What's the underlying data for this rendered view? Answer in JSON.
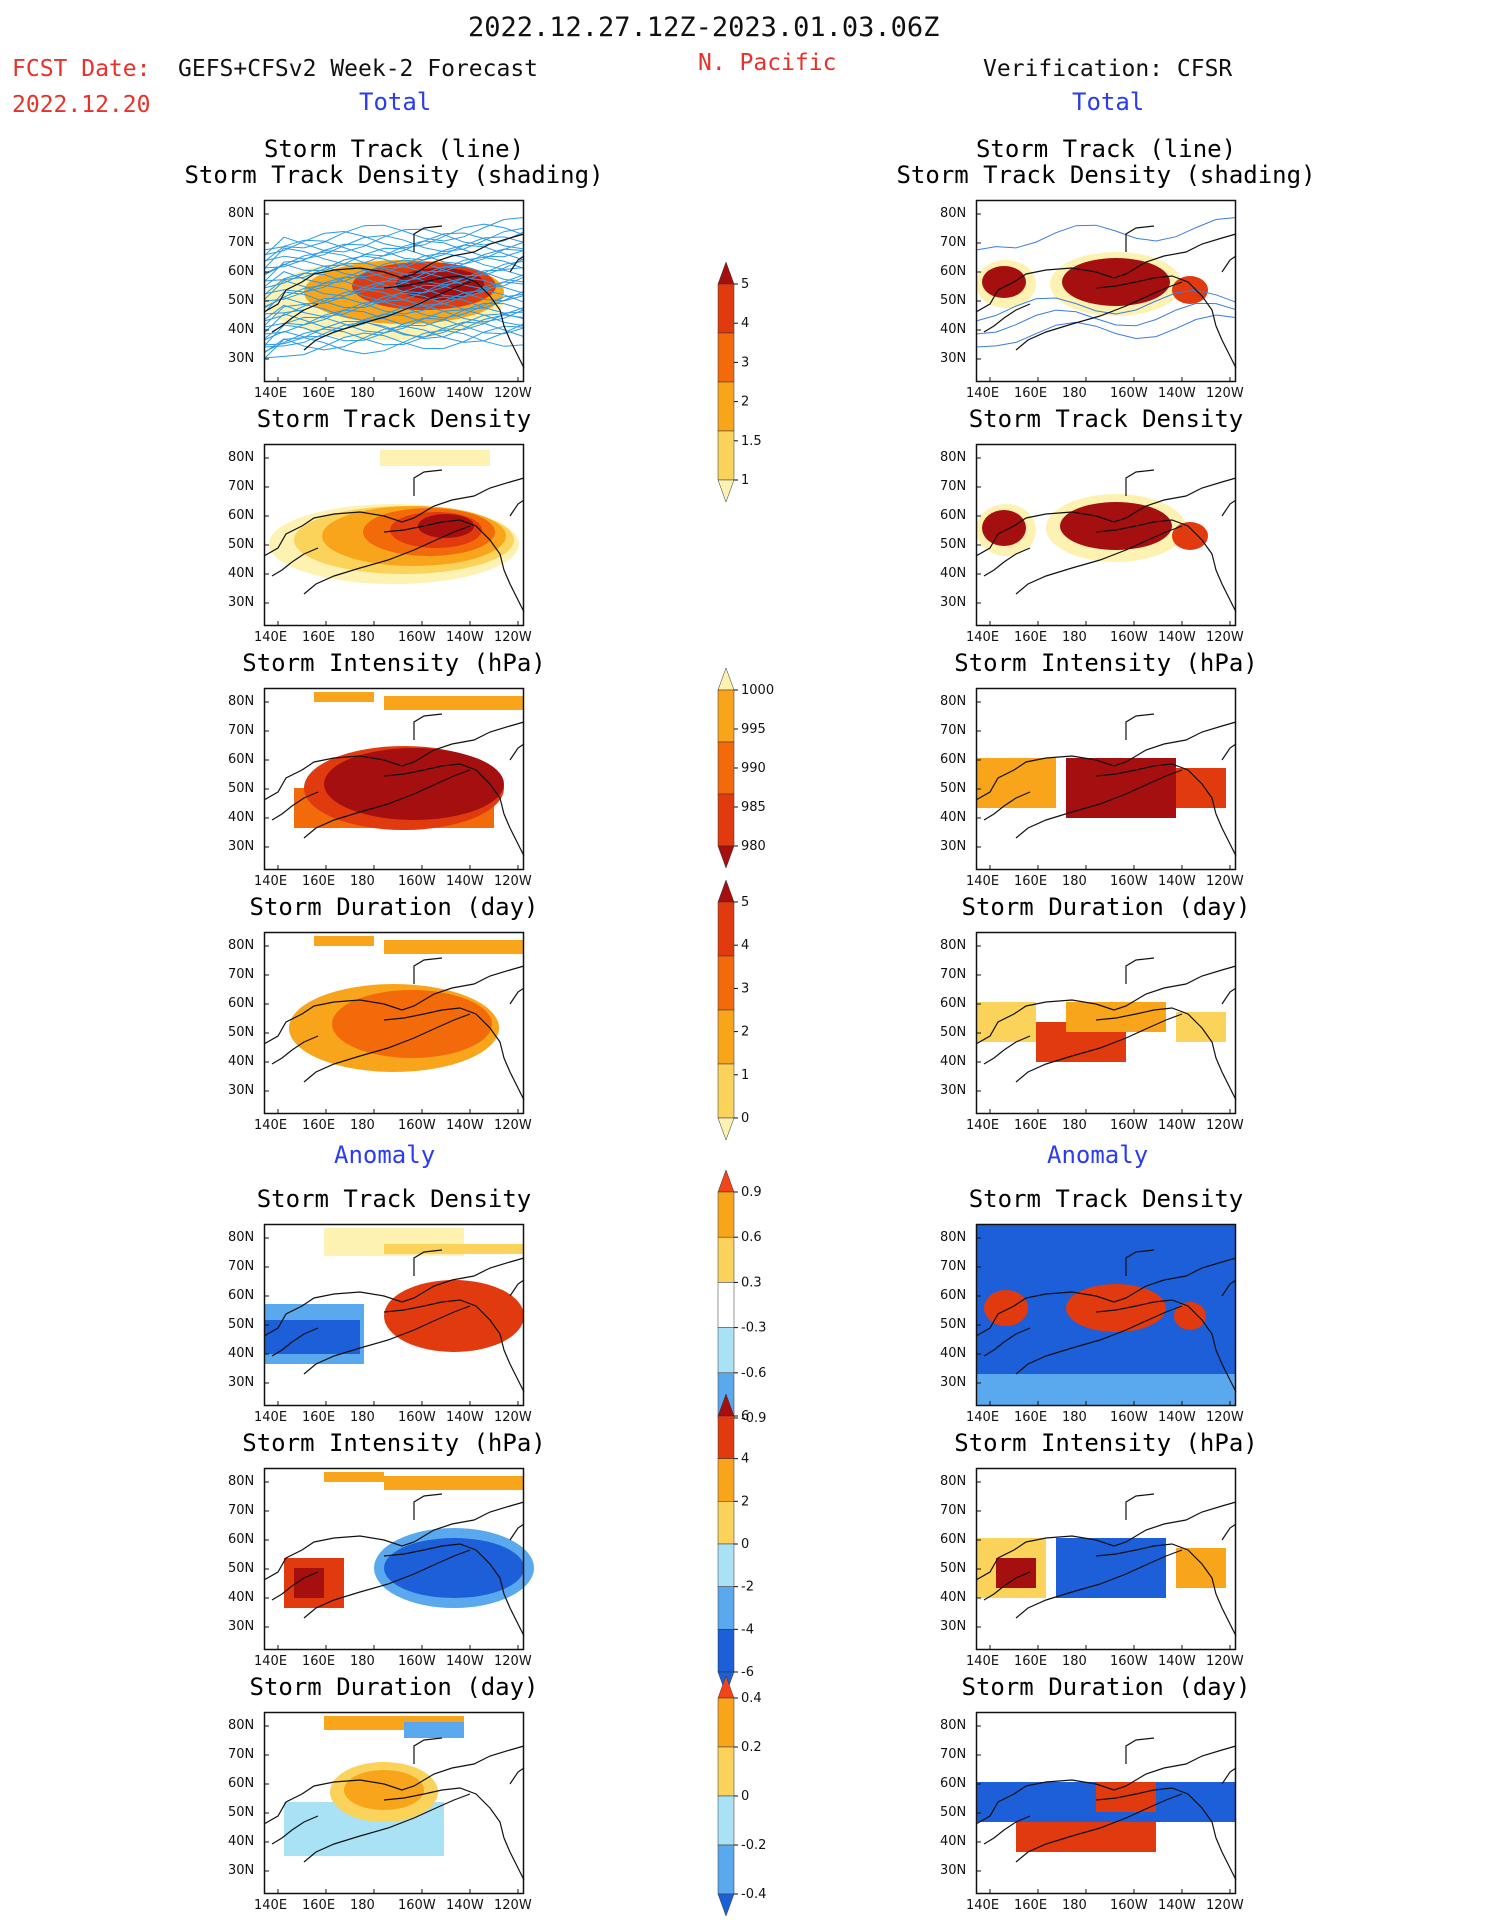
{
  "header": {
    "date_range": "2022.12.27.12Z-2023.01.03.06Z",
    "fcst_label": "FCST Date:",
    "fcst_date": "2022.12.20",
    "model": "GEFS+CFSv2 Week-2 Forecast",
    "region": "N. Pacific",
    "verification_label": "Verification:",
    "verification_source": "CFSR"
  },
  "sections": {
    "total_left": "Total",
    "total_right": "Total",
    "anomaly_left": "Anomaly",
    "anomaly_right": "Anomaly"
  },
  "axes": {
    "lat_ticks": [
      "80N",
      "70N",
      "60N",
      "50N",
      "40N",
      "30N"
    ],
    "lon_ticks": [
      "140E",
      "160E",
      "180",
      "160W",
      "140W",
      "120W"
    ]
  },
  "panels": {
    "left": [
      {
        "title": "Storm Track (line)",
        "title2": "Storm Track Density (shading)"
      },
      {
        "title": "Storm Track Density"
      },
      {
        "title": "Storm Intensity (hPa)"
      },
      {
        "title": "Storm Duration (day)"
      },
      {
        "title": "Storm Track Density"
      },
      {
        "title": "Storm Intensity (hPa)"
      },
      {
        "title": "Storm Duration (day)"
      }
    ],
    "right": [
      {
        "title": "Storm Track (line)",
        "title2": "Storm Track Density (shading)"
      },
      {
        "title": "Storm Track Density"
      },
      {
        "title": "Storm Intensity (hPa)"
      },
      {
        "title": "Storm Duration (day)"
      },
      {
        "title": "Storm Track Density"
      },
      {
        "title": "Storm Intensity (hPa)"
      },
      {
        "title": "Storm Duration (day)"
      }
    ]
  },
  "colorbars": {
    "density": {
      "labels": [
        "5",
        "4",
        "3",
        "2",
        "1.5",
        "1"
      ],
      "colors": [
        "#a50f0f",
        "#e23a0f",
        "#f26a0a",
        "#f9a51b",
        "#fbd25a",
        "#fef2b2"
      ]
    },
    "intensity": {
      "labels": [
        "1000",
        "995",
        "990",
        "985",
        "980"
      ],
      "colors": [
        "#fef2b2",
        "#f9a51b",
        "#f26a0a",
        "#e23a0f",
        "#a50f0f"
      ]
    },
    "duration": {
      "labels": [
        "5",
        "4",
        "3",
        "2",
        "1",
        "0"
      ],
      "colors": [
        "#a50f0f",
        "#e23a0f",
        "#f26a0a",
        "#f9a51b",
        "#fbd25a",
        "#fef2b2"
      ]
    },
    "anom_density": {
      "labels": [
        "0.9",
        "0.6",
        "0.3",
        "-0.3",
        "-0.6",
        "-0.9"
      ],
      "colors": [
        "#f2451a",
        "#f9a51b",
        "#fbd25a",
        "#ffffff",
        "#a9e2f5",
        "#5aa8ee",
        "#1c5fd8"
      ]
    },
    "anom_intensity": {
      "labels": [
        "6",
        "4",
        "2",
        "0",
        "-2",
        "-4",
        "-6"
      ],
      "colors": [
        "#a50f0f",
        "#e23a0f",
        "#f9a51b",
        "#fbd25a",
        "#a9e2f5",
        "#5aa8ee",
        "#1c5fd8",
        "#1c5fd8"
      ]
    },
    "anom_duration": {
      "labels": [
        "0.4",
        "0.2",
        "0",
        "-0.2",
        "-0.4"
      ],
      "colors": [
        "#f2451a",
        "#f9a51b",
        "#fbd25a",
        "#a9e2f5",
        "#5aa8ee",
        "#1c5fd8"
      ]
    }
  }
}
